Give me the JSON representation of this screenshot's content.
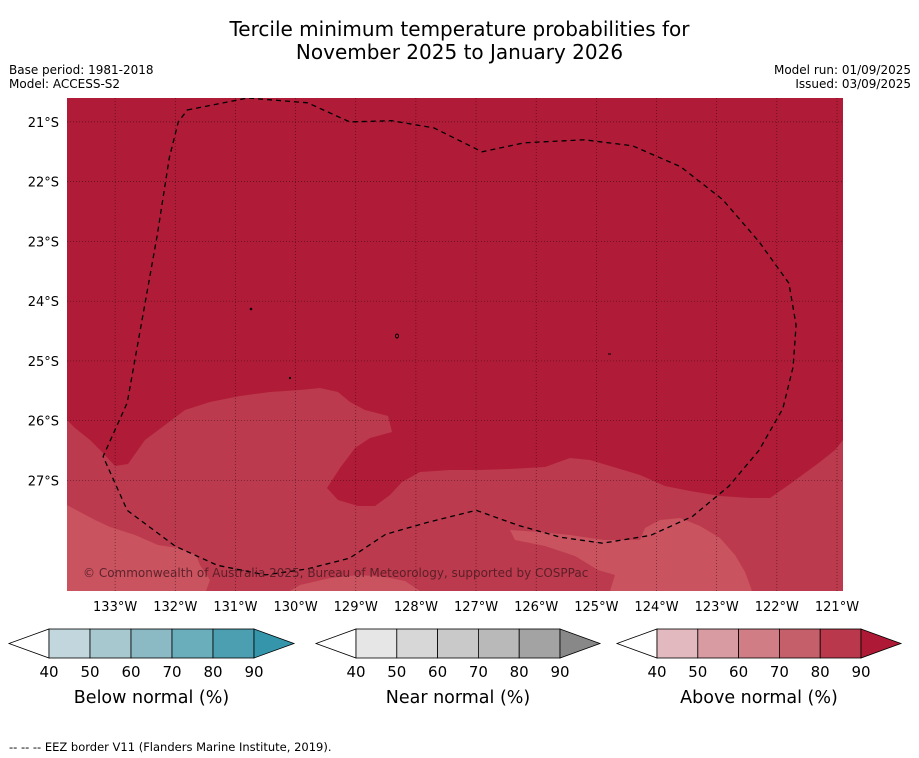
{
  "title_line1": "Tercile minimum temperature probabilities for",
  "title_line2": "November 2025 to January 2026",
  "base_period": "Base period: 1981-2018",
  "model": "Model: ACCESS-S2",
  "model_run": "Model run: 01/09/2025",
  "issued": "Issued: 03/09/2025",
  "copyright": "© Commonwealth of Australia 2025, Bureau of Meteorology, supported by COSPPac",
  "footer_note": "--  --  -- EEZ border V11 (Flanders Marine Institute, 2019).",
  "colors": {
    "above_90": "#b01c37",
    "above_80": "#bc3a4d",
    "above_70": "#c9535f",
    "above_60": "#d3828b",
    "above_50": "#da9aa2",
    "above_40": "#e2b9bf",
    "below_scale": [
      "#c2d7dd",
      "#a7c8cf",
      "#8bbac4",
      "#6aadbb",
      "#4b9fb0",
      "#3596ab"
    ],
    "near_scale": [
      "#e6e6e6",
      "#d7d7d7",
      "#c9c9c9",
      "#b9b9b9",
      "#a3a3a3",
      "#888888"
    ],
    "above_scale": [
      "#e2b9bf",
      "#d99ba2",
      "#d07d86",
      "#c55f69",
      "#b9384c",
      "#ae1a35"
    ]
  },
  "chart_data": {
    "type": "heatmap",
    "x_ticks": [
      "133°W",
      "132°W",
      "131°W",
      "130°W",
      "129°W",
      "128°W",
      "127°W",
      "126°W",
      "125°W",
      "124°W",
      "123°W",
      "122°W",
      "121°W"
    ],
    "x_values": [
      -133,
      -132,
      -131,
      -130,
      -129,
      -128,
      -127,
      -126,
      -125,
      -124,
      -123,
      -122,
      -121
    ],
    "y_ticks": [
      "21°S",
      "22°S",
      "23°S",
      "24°S",
      "25°S",
      "26°S",
      "27°S"
    ],
    "y_values": [
      -21,
      -22,
      -23,
      -24,
      -25,
      -26,
      -27
    ],
    "xlim": [
      -133.8,
      -120.9
    ],
    "ylim": [
      -28.85,
      -20.6
    ],
    "grid": true,
    "regions": [
      {
        "category": "Above normal",
        "probability_bin": "80-90",
        "area": "south-west and south of map"
      },
      {
        "category": "Above normal",
        "probability_bin": "90+",
        "area": "north and central"
      }
    ],
    "eez_border_path_lonlat": [
      [
        -131.8,
        -20.8
      ],
      [
        -130.8,
        -20.6
      ],
      [
        -129.8,
        -20.68
      ],
      [
        -129.1,
        -21.0
      ],
      [
        -128.4,
        -20.98
      ],
      [
        -127.7,
        -21.1
      ],
      [
        -126.9,
        -21.5
      ],
      [
        -126.2,
        -21.35
      ],
      [
        -125.2,
        -21.3
      ],
      [
        -124.4,
        -21.4
      ],
      [
        -123.6,
        -21.75
      ],
      [
        -122.9,
        -22.3
      ],
      [
        -122.3,
        -23.0
      ],
      [
        -121.8,
        -23.7
      ],
      [
        -121.68,
        -24.4
      ],
      [
        -121.73,
        -25.1
      ],
      [
        -121.9,
        -25.8
      ],
      [
        -122.3,
        -26.5
      ],
      [
        -122.8,
        -27.1
      ],
      [
        -123.4,
        -27.6
      ],
      [
        -124.1,
        -27.92
      ],
      [
        -124.9,
        -28.05
      ],
      [
        -125.6,
        -27.95
      ],
      [
        -126.3,
        -27.75
      ],
      [
        -127.0,
        -27.5
      ],
      [
        -127.8,
        -27.7
      ],
      [
        -128.5,
        -27.9
      ],
      [
        -129.1,
        -28.3
      ],
      [
        -129.8,
        -28.48
      ],
      [
        -130.5,
        -28.58
      ],
      [
        -131.3,
        -28.42
      ],
      [
        -132.0,
        -28.1
      ],
      [
        -132.8,
        -27.5
      ],
      [
        -133.2,
        -26.6
      ],
      [
        -132.8,
        -25.7
      ],
      [
        -132.55,
        -24.3
      ],
      [
        -132.3,
        -22.9
      ],
      [
        -132.1,
        -21.6
      ],
      [
        -131.95,
        -21.0
      ]
    ],
    "legends": [
      {
        "label": "Below normal (%)",
        "ticks": [
          "40",
          "50",
          "60",
          "70",
          "80",
          "90"
        ],
        "scale": "below_scale"
      },
      {
        "label": "Near normal (%)",
        "ticks": [
          "40",
          "50",
          "60",
          "70",
          "80",
          "90"
        ],
        "scale": "near_scale"
      },
      {
        "label": "Above normal (%)",
        "ticks": [
          "40",
          "50",
          "60",
          "70",
          "80",
          "90"
        ],
        "scale": "above_scale"
      }
    ]
  }
}
